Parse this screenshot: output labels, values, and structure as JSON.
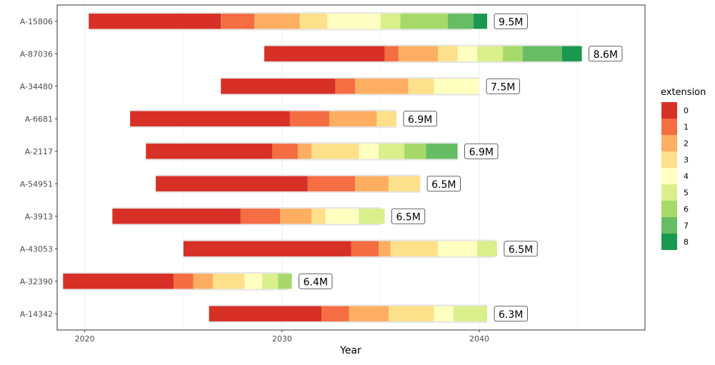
{
  "chart_data": {
    "type": "bar",
    "subtype": "stacked-horizontal-segments",
    "xlabel": "Year",
    "ylabel": "",
    "xlim": [
      2018.6,
      2048.4
    ],
    "xticks": [
      2020,
      2030,
      2040
    ],
    "grid": true,
    "legend": {
      "title": "extension",
      "position": "right",
      "items": [
        {
          "label": "0",
          "color": "#d73027"
        },
        {
          "label": "1",
          "color": "#f46d43"
        },
        {
          "label": "2",
          "color": "#fdae61"
        },
        {
          "label": "3",
          "color": "#fee08b"
        },
        {
          "label": "4",
          "color": "#ffffbf"
        },
        {
          "label": "5",
          "color": "#d9ef8b"
        },
        {
          "label": "6",
          "color": "#a6d96a"
        },
        {
          "label": "7",
          "color": "#66bd63"
        },
        {
          "label": "8",
          "color": "#1a9850"
        }
      ]
    },
    "rows": [
      {
        "name": "A-15806",
        "label": "9.5M",
        "bg": [
          2020.2,
          2039.6
        ],
        "segments": [
          2020.2,
          2026.9,
          2028.6,
          2030.9,
          2032.3,
          2035.0,
          2036.0,
          2038.4,
          2039.7,
          2040.4
        ]
      },
      {
        "name": "A-87036",
        "label": "8.6M",
        "bg": [
          2029.1,
          2045.1
        ],
        "segments": [
          2029.1,
          2035.2,
          2035.9,
          2037.9,
          2038.9,
          2039.9,
          2041.2,
          2042.2,
          2044.2,
          2045.2
        ]
      },
      {
        "name": "A-34480",
        "label": "7.5M",
        "bg": [
          2026.9,
          2040.0
        ],
        "segments": [
          2026.9,
          2032.7,
          2033.7,
          2036.4,
          2037.7,
          2040.0
        ]
      },
      {
        "name": "A-6681",
        "label": "6.9M",
        "bg": [
          2022.3,
          2035.8
        ],
        "segments": [
          2022.3,
          2030.4,
          2032.4,
          2034.8,
          2035.8
        ]
      },
      {
        "name": "A-2117",
        "label": "6.9M",
        "bg": [
          2023.1,
          2038.9
        ],
        "segments": [
          2023.1,
          2029.5,
          2030.8,
          2031.5,
          2033.9,
          2034.9,
          2036.2,
          2037.3,
          2038.9
        ]
      },
      {
        "name": "A-54951",
        "label": "6.5M",
        "bg": [
          2023.6,
          2037.0
        ],
        "segments": [
          2023.6,
          2031.3,
          2033.7,
          2035.4,
          2037.0
        ]
      },
      {
        "name": "A-3913",
        "label": "6.5M",
        "bg": [
          2021.4,
          2035.0
        ],
        "segments": [
          2021.4,
          2027.9,
          2029.9,
          2031.5,
          2032.2,
          2033.9,
          2035.2
        ]
      },
      {
        "name": "A-43053",
        "label": "6.5M",
        "bg": [
          2025.0,
          2040.8
        ],
        "segments": [
          2025.0,
          2033.5,
          2034.9,
          2035.5,
          2037.9,
          2039.9,
          2040.9
        ]
      },
      {
        "name": "A-32390",
        "label": "6.4M",
        "bg": [
          2018.9,
          2030.3
        ],
        "segments": [
          2018.9,
          2024.5,
          2025.5,
          2026.5,
          2028.1,
          2029.0,
          2029.8,
          2030.5
        ]
      },
      {
        "name": "A-14342",
        "label": "6.3M",
        "bg": [
          2026.3,
          2040.4
        ],
        "segments": [
          2026.3,
          2032.0,
          2033.4,
          2035.4,
          2037.7,
          2038.7,
          2040.4
        ]
      }
    ]
  }
}
